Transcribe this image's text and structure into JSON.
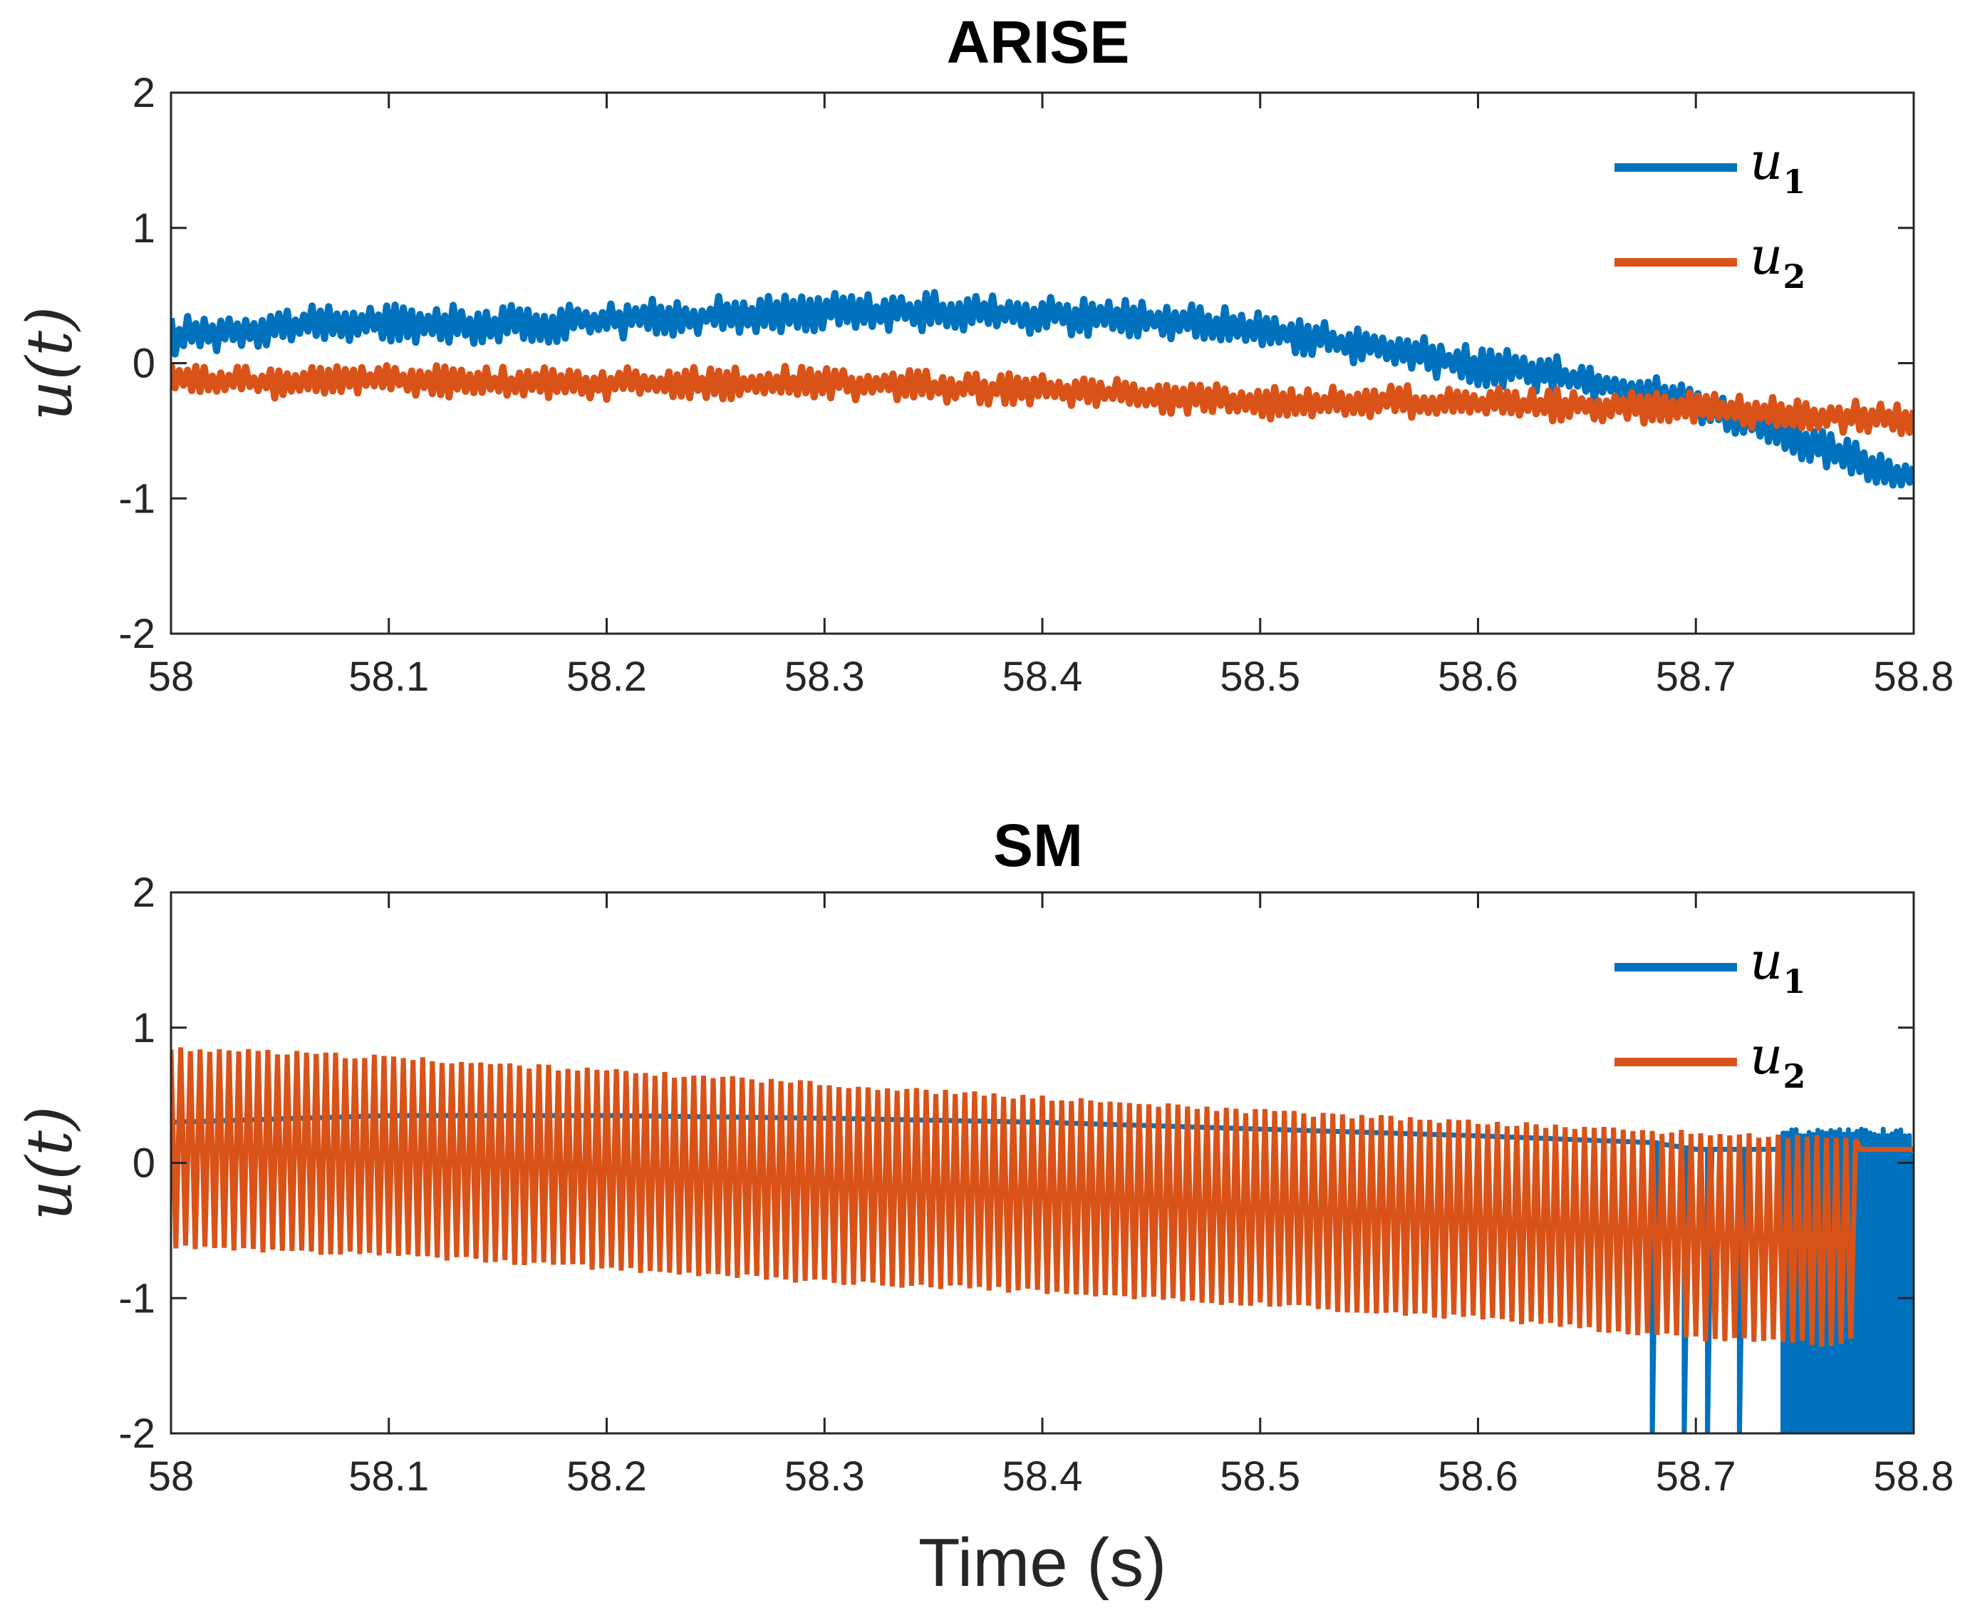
{
  "chart_data": [
    {
      "type": "line",
      "title": "ARISE",
      "xlabel": "",
      "ylabel": "u(t)",
      "xlim": [
        58,
        58.8
      ],
      "ylim": [
        -2,
        2
      ],
      "xticks": [
        "58",
        "58.1",
        "58.2",
        "58.3",
        "58.4",
        "58.5",
        "58.6",
        "58.7",
        "58.8"
      ],
      "yticks": [
        "2",
        "1",
        "0",
        "-1",
        "-2"
      ],
      "legend_position": "top-right",
      "series": [
        {
          "name": "u",
          "subscript": "1",
          "color": "#0072BD",
          "x": [
            58.0,
            58.05,
            58.1,
            58.15,
            58.2,
            58.25,
            58.3,
            58.35,
            58.4,
            58.45,
            58.5,
            58.55,
            58.6,
            58.65,
            58.7,
            58.75,
            58.8
          ],
          "y": [
            0.2,
            0.27,
            0.3,
            0.28,
            0.32,
            0.35,
            0.38,
            0.38,
            0.36,
            0.33,
            0.25,
            0.12,
            -0.02,
            -0.12,
            -0.3,
            -0.6,
            -0.85
          ],
          "jitter": 0.12
        },
        {
          "name": "u",
          "subscript": "2",
          "color": "#D95319",
          "x": [
            58.0,
            58.05,
            58.1,
            58.15,
            58.2,
            58.25,
            58.3,
            58.35,
            58.4,
            58.45,
            58.5,
            58.55,
            58.6,
            58.65,
            58.7,
            58.75,
            58.8
          ],
          "y": [
            -0.12,
            -0.15,
            -0.12,
            -0.15,
            -0.15,
            -0.15,
            -0.14,
            -0.18,
            -0.2,
            -0.24,
            -0.3,
            -0.28,
            -0.3,
            -0.32,
            -0.33,
            -0.38,
            -0.42
          ],
          "jitter": 0.1
        }
      ]
    },
    {
      "type": "line",
      "title": "SM",
      "xlabel": "Time (s)",
      "ylabel": "u(t)",
      "xlim": [
        58,
        58.8
      ],
      "ylim": [
        -2,
        2
      ],
      "xticks": [
        "58",
        "58.1",
        "58.2",
        "58.3",
        "58.4",
        "58.5",
        "58.6",
        "58.7",
        "58.8"
      ],
      "yticks": [
        "2",
        "1",
        "0",
        "-1",
        "-2"
      ],
      "legend_position": "top-right",
      "series": [
        {
          "name": "u",
          "subscript": "1",
          "color": "#0072BD",
          "x": [
            58.0,
            58.1,
            58.2,
            58.3,
            58.4,
            58.5,
            58.6,
            58.68,
            58.7,
            58.75,
            58.8
          ],
          "y": [
            0.3,
            0.35,
            0.35,
            0.33,
            0.3,
            0.25,
            0.2,
            0.15,
            0.1,
            0.1,
            0.05
          ],
          "spikes_to": -2.0,
          "spike_x": [
            58.68,
            58.695,
            58.705,
            58.72,
            58.74,
            58.75,
            58.76,
            58.77,
            58.78,
            58.79,
            58.8
          ]
        },
        {
          "name": "u",
          "subscript": "2",
          "color": "#D95319",
          "x": [
            58.0,
            58.1,
            58.2,
            58.3,
            58.4,
            58.5,
            58.6,
            58.7,
            58.77,
            58.8
          ],
          "y_high": [
            0.85,
            0.78,
            0.68,
            0.58,
            0.48,
            0.38,
            0.3,
            0.22,
            0.18,
            0.1
          ],
          "y_low": [
            -0.62,
            -0.68,
            -0.78,
            -0.88,
            -0.95,
            -1.05,
            -1.15,
            -1.3,
            -1.35,
            0.1
          ]
        }
      ]
    }
  ]
}
